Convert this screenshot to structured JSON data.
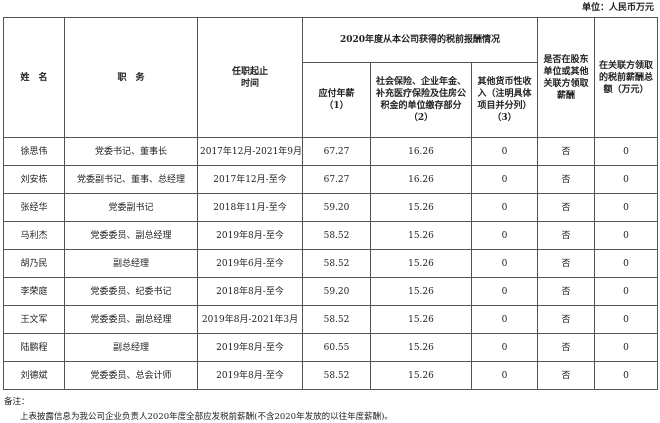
{
  "unit_label": "单位：人民币万元",
  "headers": {
    "name": "姓　名",
    "position": "职　务",
    "term": "任职起止时间",
    "group": "2020年度从本公司获得的税前报酬情况",
    "salary": "应付年薪（1）",
    "insurance": "社会保险、企业年金、补充医疗保险及住房公积金的单位缴存部分（2）",
    "other_income": "其他货币性收入（注明具体项目并分列）（3）",
    "related_party": "是否在股东单位或其他关联方领取薪酬",
    "related_total": "在关联方领取的税前薪酬总额（万元）"
  },
  "rows": [
    {
      "name": "徐思伟",
      "position": "党委书记、董事长",
      "term": "2017年12月-2021年9月",
      "salary": "67.27",
      "insurance": "16.26",
      "other": "0",
      "related": "否",
      "related_total": "0"
    },
    {
      "name": "刘安栋",
      "position": "党委副书记、董事、总经理",
      "term": "2017年12月-至今",
      "salary": "67.27",
      "insurance": "16.26",
      "other": "0",
      "related": "否",
      "related_total": "0"
    },
    {
      "name": "张经华",
      "position": "党委副书记",
      "term": "2018年11月-至今",
      "salary": "59.20",
      "insurance": "15.26",
      "other": "0",
      "related": "否",
      "related_total": "0"
    },
    {
      "name": "马利杰",
      "position": "党委委员、副总经理",
      "term": "2019年8月-至今",
      "salary": "58.52",
      "insurance": "15.26",
      "other": "0",
      "related": "否",
      "related_total": "0"
    },
    {
      "name": "胡乃民",
      "position": "副总经理",
      "term": "2019年6月-至今",
      "salary": "58.52",
      "insurance": "15.26",
      "other": "0",
      "related": "否",
      "related_total": "0"
    },
    {
      "name": "李荣庭",
      "position": "党委委员、纪委书记",
      "term": "2018年8月-至今",
      "salary": "59.20",
      "insurance": "15.26",
      "other": "0",
      "related": "否",
      "related_total": "0"
    },
    {
      "name": "王文军",
      "position": "党委委员、副总经理",
      "term": "2019年8月-2021年3月",
      "salary": "58.52",
      "insurance": "15.26",
      "other": "0",
      "related": "否",
      "related_total": "0"
    },
    {
      "name": "陆鹏程",
      "position": "副总经理",
      "term": "2019年8月-至今",
      "salary": "60.55",
      "insurance": "15.26",
      "other": "0",
      "related": "否",
      "related_total": "0"
    },
    {
      "name": "刘德斌",
      "position": "党委委员、总会计师",
      "term": "2019年8月-至今",
      "salary": "58.52",
      "insurance": "15.26",
      "other": "0",
      "related": "否",
      "related_total": "0"
    }
  ],
  "note_label": "备注：",
  "note_text": "上表披露信息为我公司企业负责人2020年度全部应发税前薪酬(不含2020年发放的以往年度薪酬)。"
}
